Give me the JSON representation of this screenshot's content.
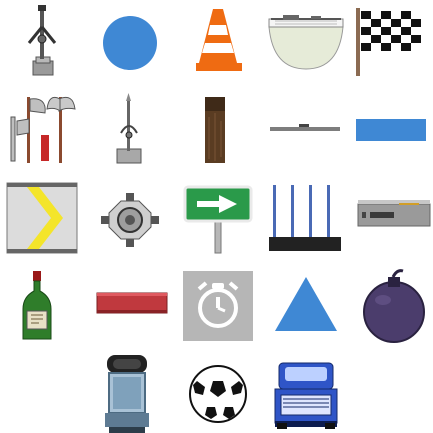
{
  "palette": {
    "title": "",
    "rows": [
      {
        "items": [
          {
            "icon": "crossbow-stand-icon",
            "label": ""
          },
          {
            "icon": "blue-circle-icon",
            "label": ""
          },
          {
            "icon": "traffic-cone-icon",
            "label": ""
          },
          {
            "icon": "glass-dome-bowl-icon",
            "label": ""
          },
          {
            "icon": "checkered-flag-icon",
            "label": ""
          }
        ]
      },
      {
        "items": [
          {
            "icon": "axe-rack-icon",
            "label": ""
          },
          {
            "icon": "spear-stand-icon",
            "label": ""
          },
          {
            "icon": "wooden-post-icon",
            "label": ""
          },
          {
            "icon": "thin-bar-icon",
            "label": ""
          },
          {
            "icon": "blue-rectangle-icon",
            "label": ""
          }
        ]
      },
      {
        "items": [
          {
            "icon": "chevron-road-sign-icon",
            "label": ""
          },
          {
            "icon": "mechanical-hub-icon",
            "label": ""
          },
          {
            "icon": "green-arrow-sign-icon",
            "label": ""
          },
          {
            "icon": "fence-gate-icon",
            "label": ""
          },
          {
            "icon": "metal-device-icon",
            "label": ""
          }
        ]
      },
      {
        "items": [
          {
            "icon": "wine-bottle-icon",
            "label": ""
          },
          {
            "icon": "red-beam-icon",
            "label": ""
          },
          {
            "icon": "timer-clock-icon",
            "label": ""
          },
          {
            "icon": "blue-triangle-icon",
            "label": ""
          },
          {
            "icon": "purple-bomb-icon",
            "label": ""
          }
        ]
      },
      {
        "items": [
          {
            "icon": "robot-capsule-icon",
            "label": ""
          },
          {
            "icon": "soccer-ball-icon",
            "label": ""
          },
          {
            "icon": "blue-van-icon",
            "label": ""
          }
        ]
      }
    ],
    "colors": {
      "blue": "#3f88d4",
      "cone_orange": "#ef6b12",
      "sign_green": "#2a9a4a",
      "bottle_green": "#2f7d2a",
      "beam_red": "#c0393e",
      "bomb_purple": "#4b3d6c",
      "timer_gray": "#b6b6b6",
      "chevron_yellow": "#f4e52a"
    }
  }
}
